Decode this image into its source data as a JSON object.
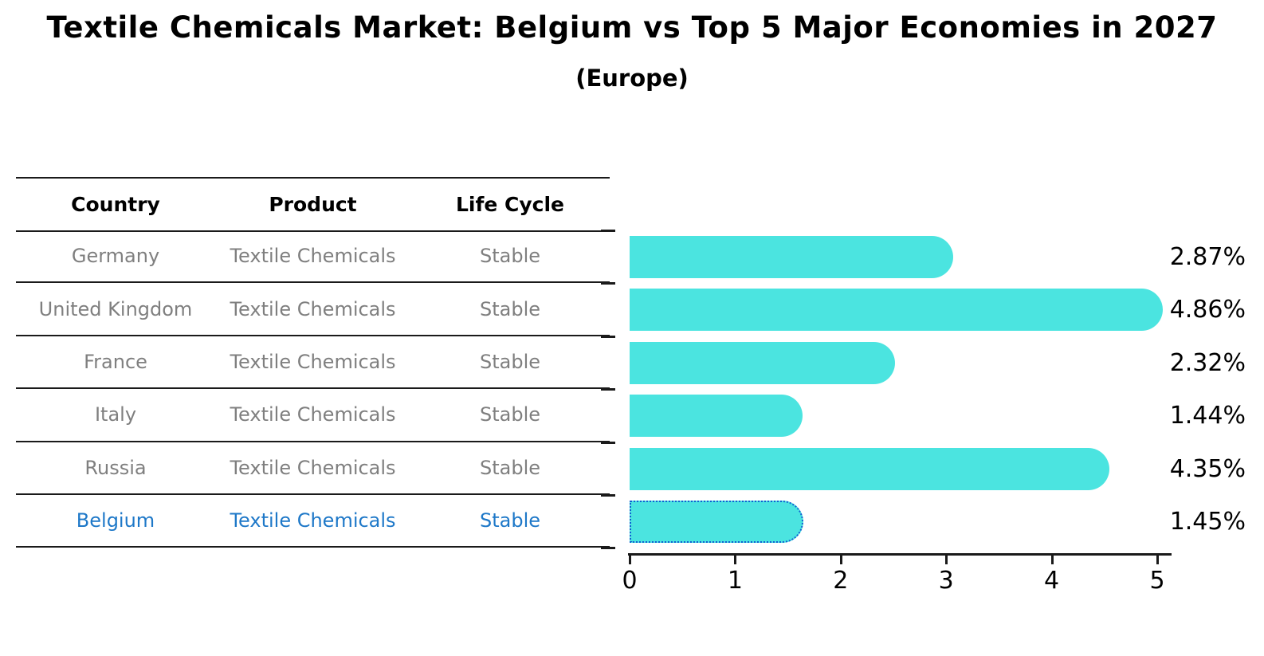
{
  "title": "Textile Chemicals Market: Belgium vs Top 5 Major Economies in 2027",
  "subtitle": "(Europe)",
  "table": {
    "headers": [
      "Country",
      "Product",
      "Life Cycle"
    ],
    "rows": [
      {
        "country": "Germany",
        "product": "Textile Chemicals",
        "life_cycle": "Stable",
        "highlighted": false
      },
      {
        "country": "United Kingdom",
        "product": "Textile Chemicals",
        "life_cycle": "Stable",
        "highlighted": false
      },
      {
        "country": "France",
        "product": "Textile Chemicals",
        "life_cycle": "Stable",
        "highlighted": false
      },
      {
        "country": "Italy",
        "product": "Textile Chemicals",
        "life_cycle": "Stable",
        "highlighted": false
      },
      {
        "country": "Russia",
        "product": "Textile Chemicals",
        "life_cycle": "Stable",
        "highlighted": false
      },
      {
        "country": "Belgium",
        "product": "Textile Chemicals",
        "life_cycle": "Stable",
        "highlighted": true
      }
    ]
  },
  "chart_data": {
    "type": "bar",
    "orientation": "horizontal",
    "categories": [
      "Germany",
      "United Kingdom",
      "France",
      "Italy",
      "Russia",
      "Belgium"
    ],
    "values": [
      2.87,
      4.86,
      2.32,
      1.44,
      4.35,
      1.45
    ],
    "labels": [
      "2.87%",
      "4.86%",
      "2.32%",
      "1.44%",
      "4.35%",
      "1.45%"
    ],
    "value_unit": "%",
    "xticks": [
      "0",
      "1",
      "2",
      "3",
      "4",
      "5"
    ],
    "xlim": [
      0,
      5
    ],
    "grid": false,
    "legend": false,
    "bar_color": "#4be4e0",
    "highlight_index": 5,
    "highlight_color": "#1e7de5",
    "highlight_border_color": "#1161d2",
    "highlight_text_color": "#1e78c8",
    "text_color": "#000000",
    "muted_text_color": "#7f7f7f"
  }
}
